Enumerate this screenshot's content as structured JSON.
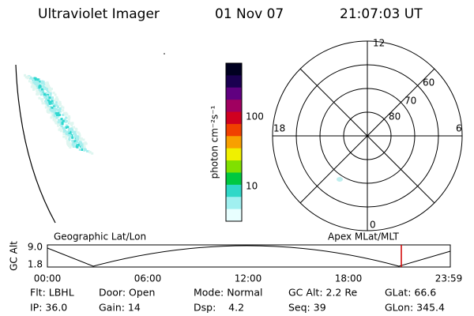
{
  "header": {
    "title": "Ultraviolet Imager",
    "date": "01 Nov 07",
    "time": "21:07:03 UT"
  },
  "colorbar": {
    "label": "photon cm⁻²s⁻¹",
    "ticks": [
      "100",
      "10"
    ]
  },
  "polar": {
    "lat_labels": [
      "80",
      "70",
      "60"
    ],
    "mlt_labels": [
      "12",
      "6",
      "0",
      "18"
    ]
  },
  "orbit_plot": {
    "y_label": "GC Alt",
    "y_ticks": [
      "9.0",
      "1.8"
    ],
    "left_title": "Geographic Lat/Lon",
    "right_title": "Apex MLat/MLT",
    "x_ticks": [
      "00:00",
      "06:00",
      "12:00",
      "18:00",
      "23:59"
    ]
  },
  "status": [
    [
      "Flt: LBHL",
      "Door: Open",
      "Mode: Normal",
      "GC Alt: 2.2 Re",
      "GLat: 66.6"
    ],
    [
      "IP: 36.0",
      "Gain: 14",
      "Dsp:    4.2",
      "Seq: 39",
      "GLon: 345.4"
    ]
  ]
}
